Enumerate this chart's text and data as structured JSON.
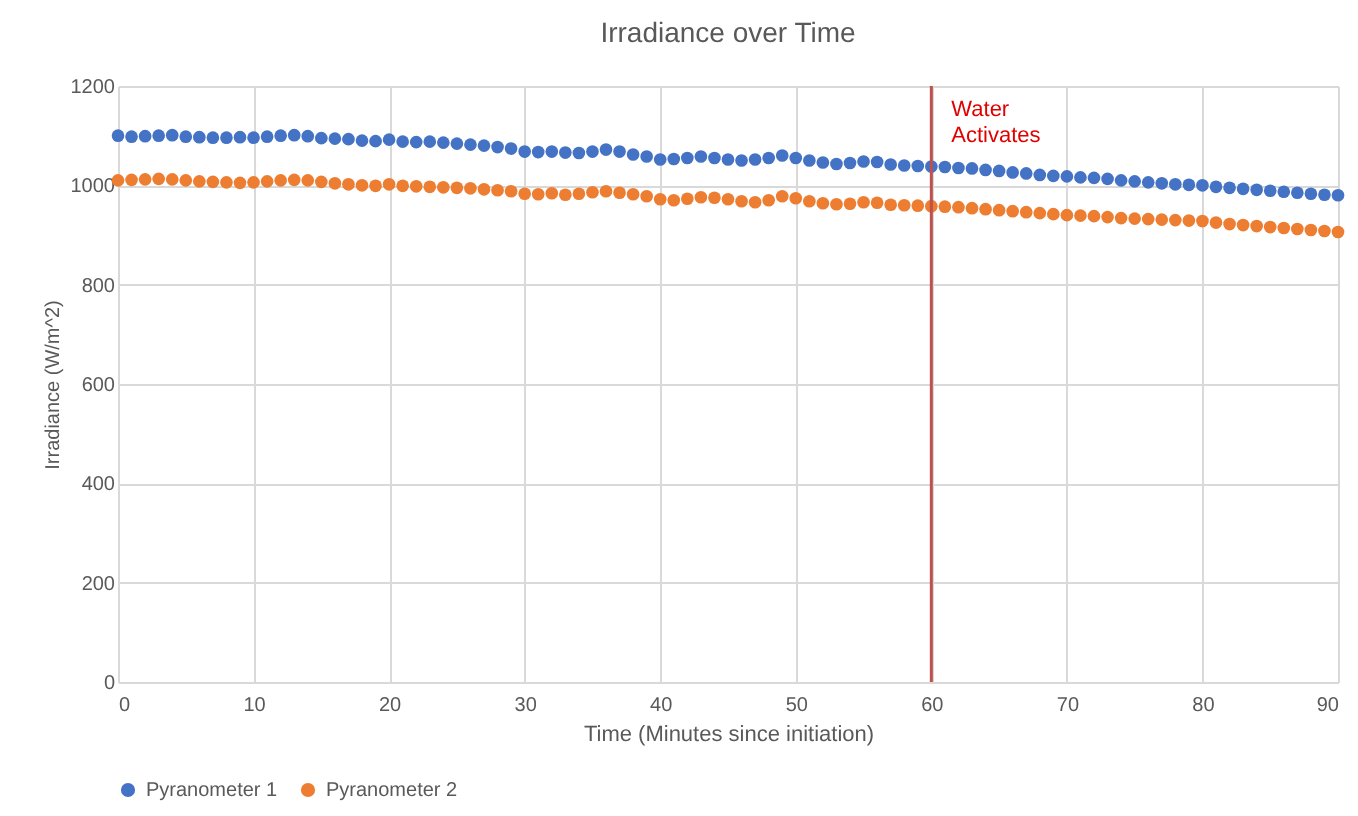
{
  "chart_data": {
    "type": "scatter",
    "title": "Irradiance over Time",
    "xlabel": "Time (Minutes since initiation)",
    "ylabel": "Irradiance (W/m^2)",
    "x": [
      0,
      1,
      2,
      3,
      4,
      5,
      6,
      7,
      8,
      9,
      10,
      11,
      12,
      13,
      14,
      15,
      16,
      17,
      18,
      19,
      20,
      21,
      22,
      23,
      24,
      25,
      26,
      27,
      28,
      29,
      30,
      31,
      32,
      33,
      34,
      35,
      36,
      37,
      38,
      39,
      40,
      41,
      42,
      43,
      44,
      45,
      46,
      47,
      48,
      49,
      50,
      51,
      52,
      53,
      54,
      55,
      56,
      57,
      58,
      59,
      60,
      61,
      62,
      63,
      64,
      65,
      66,
      67,
      68,
      69,
      70,
      71,
      72,
      73,
      74,
      75,
      76,
      77,
      78,
      79,
      80,
      81,
      82,
      83,
      84,
      85,
      86,
      87,
      88,
      89,
      90
    ],
    "series": [
      {
        "name": "Pyranometer 1",
        "color": "#4472c4",
        "values": [
          1100,
          1098,
          1099,
          1100,
          1101,
          1098,
          1097,
          1096,
          1096,
          1097,
          1096,
          1098,
          1100,
          1101,
          1099,
          1095,
          1094,
          1093,
          1090,
          1089,
          1092,
          1088,
          1087,
          1088,
          1086,
          1084,
          1082,
          1080,
          1077,
          1074,
          1068,
          1067,
          1068,
          1066,
          1065,
          1068,
          1072,
          1068,
          1062,
          1058,
          1052,
          1053,
          1055,
          1058,
          1055,
          1052,
          1050,
          1052,
          1055,
          1060,
          1055,
          1050,
          1046,
          1043,
          1045,
          1048,
          1047,
          1042,
          1040,
          1039,
          1038,
          1037,
          1035,
          1034,
          1031,
          1029,
          1026,
          1024,
          1021,
          1019,
          1018,
          1016,
          1015,
          1013,
          1010,
          1008,
          1006,
          1004,
          1002,
          1001,
          1000,
          997,
          995,
          993,
          991,
          989,
          987,
          985,
          983,
          981,
          980
        ]
      },
      {
        "name": "Pyranometer 2",
        "color": "#ed7d31",
        "values": [
          1010,
          1011,
          1012,
          1013,
          1012,
          1010,
          1008,
          1007,
          1006,
          1005,
          1006,
          1008,
          1010,
          1011,
          1010,
          1007,
          1004,
          1002,
          1000,
          999,
          1002,
          999,
          998,
          997,
          996,
          995,
          994,
          992,
          990,
          988,
          983,
          982,
          984,
          981,
          983,
          986,
          988,
          985,
          982,
          978,
          972,
          970,
          973,
          976,
          975,
          972,
          968,
          966,
          970,
          978,
          974,
          968,
          964,
          962,
          963,
          966,
          965,
          961,
          960,
          959,
          958,
          957,
          956,
          954,
          952,
          950,
          948,
          946,
          944,
          942,
          940,
          939,
          938,
          936,
          934,
          933,
          932,
          931,
          930,
          929,
          928,
          925,
          922,
          920,
          918,
          916,
          914,
          912,
          910,
          908,
          906
        ]
      }
    ],
    "xlim": [
      0,
      90
    ],
    "xticks": [
      0,
      10,
      20,
      30,
      40,
      50,
      60,
      70,
      80,
      90
    ],
    "ylim": [
      0,
      1200
    ],
    "yticks": [
      0,
      200,
      400,
      600,
      800,
      1000,
      1200
    ],
    "grid": true,
    "legend": "bottom",
    "marker": "circle",
    "ref_lines": [
      {
        "axis": "x",
        "value": 60,
        "label": "Water Activates",
        "color": "#c0504d"
      }
    ]
  }
}
